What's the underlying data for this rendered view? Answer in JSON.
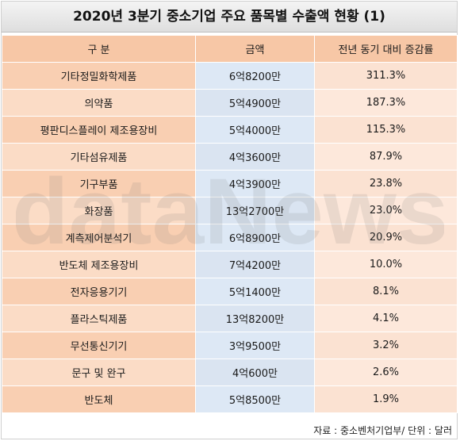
{
  "title": "2020년 3분기 중소기업 주요 품목별 수출액 현황 (1)",
  "headers": [
    "구  분",
    "금액",
    "전년 동기 대비 증감률"
  ],
  "rows": [
    {
      "category": "기타정밀화학제품",
      "amount": "6억8200만",
      "change": "311.3%"
    },
    {
      "category": "의약품",
      "amount": "5억4900만",
      "change": "187.3%"
    },
    {
      "category": "평판디스플레이 제조용장비",
      "amount": "5억4000만",
      "change": "115.3%"
    },
    {
      "category": "기타섬유제품",
      "amount": "4억3600만",
      "change": "87.9%"
    },
    {
      "category": "기구부품",
      "amount": "4억3900만",
      "change": "23.8%"
    },
    {
      "category": "화장품",
      "amount": "13억2700만",
      "change": "23.0%"
    },
    {
      "category": "계측제어분석기",
      "amount": "6억8900만",
      "change": "20.9%"
    },
    {
      "category": "반도체 제조용장비",
      "amount": "7억4200만",
      "change": "10.0%"
    },
    {
      "category": "전자응용기기",
      "amount": "5억1400만",
      "change": "8.1%"
    },
    {
      "category": "플라스틱제품",
      "amount": "13억8200만",
      "change": "4.1%"
    },
    {
      "category": "무선통신기기",
      "amount": "3억9500만",
      "change": "3.2%"
    },
    {
      "category": "문구 및 완구",
      "amount": "4억600만",
      "change": "2.6%"
    },
    {
      "category": "반도체",
      "amount": "5억8500만",
      "change": "1.9%"
    }
  ],
  "source": "자료 : 중소벤처기업부/ 단위 : 달러",
  "watermark": "dataNews",
  "colors": {
    "header_bg": "#f7c7a6",
    "category_bg": "#f9cfb2",
    "amount_bg": "#dde8f5",
    "change_bg": "#fbe2d2"
  }
}
